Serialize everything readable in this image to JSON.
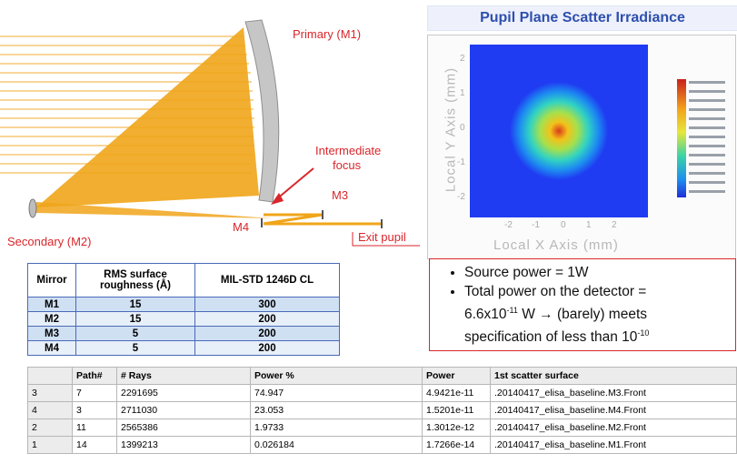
{
  "diagram": {
    "labels": {
      "primary": "Primary (M1)",
      "intermediate_focus_line1": "Intermediate",
      "intermediate_focus_line2": "focus",
      "m3": "M3",
      "m4": "M4",
      "secondary": "Secondary (M2)",
      "exit_pupil": "Exit pupil"
    },
    "colors": {
      "rays": "#f0a51a",
      "label": "#d9262b",
      "mirror": "#bfbfbf"
    }
  },
  "pupil_plot": {
    "title": "Pupil Plane Scatter Irradiance",
    "xlabel": "Local X Axis (mm)",
    "ylabel": "Local Y Axis (mm)",
    "x_ticks": [
      "-2",
      "-1",
      "0",
      "1",
      "2"
    ],
    "y_ticks": [
      "2",
      "1",
      "0",
      "-1",
      "-2"
    ],
    "colormap": "jet"
  },
  "bullets": {
    "b1": "Source power = 1W",
    "b2_line1": "Total power on the detector =",
    "b2_line2_prefix": "6.6x10",
    "b2_line2_exp": "-11",
    "b2_line2_suffix": " W → (barely) meets",
    "b2_line3_prefix": "specification of less than 10",
    "b2_line3_exp": "-10"
  },
  "mirror_table": {
    "headers": [
      "Mirror",
      "RMS surface roughness (Å)",
      "MIL-STD 1246D CL"
    ],
    "rows": [
      [
        "M1",
        "15",
        "300"
      ],
      [
        "M2",
        "15",
        "200"
      ],
      [
        "M3",
        "5",
        "200"
      ],
      [
        "M4",
        "5",
        "200"
      ]
    ]
  },
  "paths_table": {
    "headers": [
      "",
      "Path#",
      "# Rays",
      "Power %",
      "Power",
      "1st scatter surface"
    ],
    "rows": [
      [
        "3",
        "7",
        "2291695",
        "74.947",
        "4.9421e-11",
        ".20140417_elisa_baseline.M3.Front"
      ],
      [
        "4",
        "3",
        "2711030",
        "23.053",
        "1.5201e-11",
        ".20140417_elisa_baseline.M4.Front"
      ],
      [
        "2",
        "11",
        "2565386",
        "1.9733",
        "1.3012e-12",
        ".20140417_elisa_baseline.M2.Front"
      ],
      [
        "1",
        "14",
        "1399213",
        "0.026184",
        "1.7266e-14",
        ".20140417_elisa_baseline.M1.Front"
      ]
    ]
  }
}
